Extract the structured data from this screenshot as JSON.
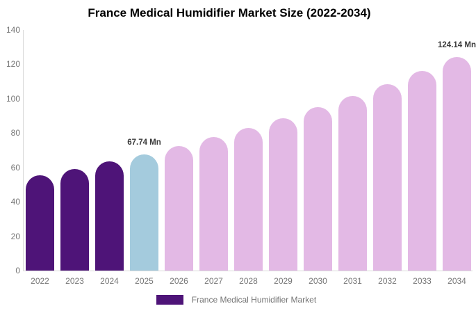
{
  "chart_data": {
    "type": "bar",
    "title": "France Medical Humidifier Market Size (2022-2034)",
    "xlabel": "",
    "ylabel": "",
    "unit": "Mn",
    "categories": [
      "2022",
      "2023",
      "2024",
      "2025",
      "2026",
      "2027",
      "2028",
      "2029",
      "2030",
      "2031",
      "2032",
      "2033",
      "2034"
    ],
    "values": [
      55.4,
      59.2,
      63.4,
      67.74,
      72.5,
      77.5,
      82.9,
      88.7,
      94.9,
      101.5,
      108.5,
      116.1,
      124.14
    ],
    "bar_colors": [
      "#4E1478",
      "#4E1478",
      "#4E1478",
      "#A4CBDD",
      "#E3B9E5",
      "#E3B9E5",
      "#E3B9E5",
      "#E3B9E5",
      "#E3B9E5",
      "#E3B9E5",
      "#E3B9E5",
      "#E3B9E5",
      "#E3B9E5"
    ],
    "ylim": [
      0,
      140
    ],
    "yticks": [
      0,
      20,
      40,
      60,
      80,
      100,
      120,
      140
    ],
    "grid": false,
    "legend_position": "bottom",
    "annotations": [
      {
        "category": "2025",
        "text": "67.74 Mn"
      },
      {
        "category": "2034",
        "text": "124.14 Mn"
      }
    ],
    "legend": {
      "label": "France Medical Humidifier Market",
      "swatch_color": "#4E1478"
    }
  },
  "colors": {
    "axis_line": "#d9d9d9",
    "tick_text": "#757575",
    "annotation_text": "#3a3a3a",
    "title_text": "#000000",
    "background": "#ffffff"
  }
}
